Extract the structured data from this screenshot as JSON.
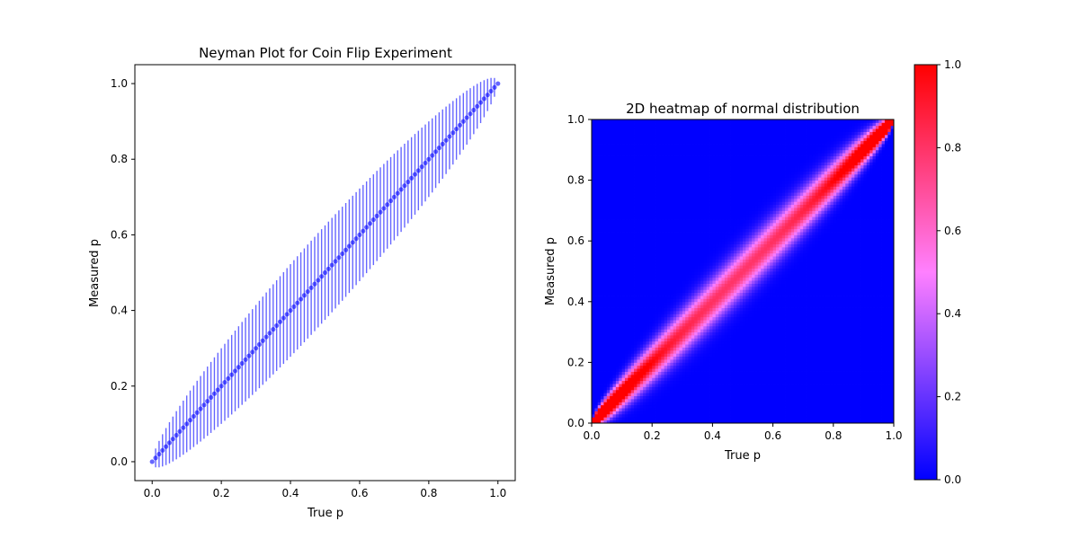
{
  "chart_data": [
    {
      "type": "scatter",
      "title": "Neyman Plot for Coin Flip Experiment",
      "xlabel": "True p",
      "ylabel": "Measured p",
      "xlim": [
        -0.05,
        1.05
      ],
      "ylim": [
        -0.05,
        1.05
      ],
      "xticks": [
        "0.0",
        "0.2",
        "0.4",
        "0.6",
        "0.8",
        "1.0"
      ],
      "yticks": [
        "0.0",
        "0.2",
        "0.4",
        "0.6",
        "0.8",
        "1.0"
      ],
      "grid": false,
      "series": [
        {
          "color": "#0000ff",
          "alpha": 0.6,
          "marker": "o",
          "x_start": 0.0,
          "x_end": 1.0,
          "n_points": 101,
          "y_equals_x": true,
          "error_bar": "y ± 2.5·sqrt(p(1−p)/100)"
        }
      ]
    },
    {
      "type": "heatmap",
      "title": "2D heatmap of normal distribution",
      "xlabel": "True p",
      "ylabel": "Measured p",
      "xlim": [
        0,
        1
      ],
      "ylim": [
        0,
        1
      ],
      "xticks": [
        "0.0",
        "0.2",
        "0.4",
        "0.6",
        "0.8",
        "1.0"
      ],
      "yticks": [
        "0.0",
        "0.2",
        "0.4",
        "0.6",
        "0.8",
        "1.0"
      ],
      "grid_cells": 100,
      "colormap": [
        "#0000ff",
        "#ff80ff",
        "#ff0000"
      ],
      "colorbar": {
        "min": 0.0,
        "max": 1.0,
        "ticks": [
          "0.0",
          "0.2",
          "0.4",
          "0.6",
          "0.8",
          "1.0"
        ]
      },
      "clip_max": 1.0
    }
  ]
}
